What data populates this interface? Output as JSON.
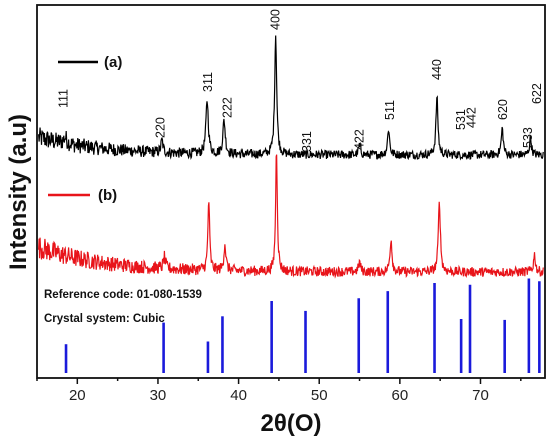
{
  "chart_data": {
    "type": "line",
    "xlabel": "2θ(O)",
    "ylabel": "Intensity (a.u)",
    "xlim": [
      15,
      78
    ],
    "x_ticks": [
      20,
      30,
      40,
      50,
      60,
      70
    ],
    "grid": false,
    "series": [
      {
        "name": "(a)",
        "color": "#000000",
        "baseline": 0.3,
        "noise": 0.035,
        "peaks": [
          {
            "x": 18.5,
            "h": 0.05,
            "w": 0.5
          },
          {
            "x": 30.5,
            "h": 0.1,
            "w": 0.3
          },
          {
            "x": 36.1,
            "h": 0.45,
            "w": 0.35
          },
          {
            "x": 38.2,
            "h": 0.28,
            "w": 0.35
          },
          {
            "x": 44.6,
            "h": 1.0,
            "w": 0.3
          },
          {
            "x": 55.0,
            "h": 0.08,
            "w": 0.3
          },
          {
            "x": 58.6,
            "h": 0.22,
            "w": 0.3
          },
          {
            "x": 64.6,
            "h": 0.48,
            "w": 0.3
          },
          {
            "x": 72.7,
            "h": 0.22,
            "w": 0.3
          },
          {
            "x": 76.2,
            "h": 0.14,
            "w": 0.3
          }
        ]
      },
      {
        "name": "(b)",
        "color": "#e8141a",
        "baseline": 0.3,
        "noise": 0.05,
        "peaks": [
          {
            "x": 30.8,
            "h": 0.12,
            "w": 0.3
          },
          {
            "x": 36.3,
            "h": 0.75,
            "w": 0.25
          },
          {
            "x": 38.3,
            "h": 0.28,
            "w": 0.3
          },
          {
            "x": 44.7,
            "h": 1.3,
            "w": 0.25
          },
          {
            "x": 55.0,
            "h": 0.1,
            "w": 0.3
          },
          {
            "x": 58.9,
            "h": 0.35,
            "w": 0.3
          },
          {
            "x": 64.9,
            "h": 0.75,
            "w": 0.3
          },
          {
            "x": 76.7,
            "h": 0.18,
            "w": 0.3
          }
        ]
      }
    ],
    "peak_labels": [
      {
        "text": "111",
        "x": 18.3,
        "vertical": true
      },
      {
        "text": "220",
        "x": 30.3,
        "vertical": true
      },
      {
        "text": "311",
        "x": 36.2,
        "vertical": true
      },
      {
        "text": "222",
        "x": 38.6,
        "vertical": true
      },
      {
        "text": "400",
        "x": 44.6,
        "vertical": true
      },
      {
        "text": "331",
        "x": 48.5,
        "vertical": true
      },
      {
        "text": "422",
        "x": 55.0,
        "vertical": true
      },
      {
        "text": "511",
        "x": 58.8,
        "vertical": true
      },
      {
        "text": "440",
        "x": 64.6,
        "vertical": true
      },
      {
        "text": "531",
        "x": 67.6,
        "vertical": true
      },
      {
        "text": "442",
        "x": 68.9,
        "vertical": true
      },
      {
        "text": "620",
        "x": 72.8,
        "vertical": true
      },
      {
        "text": "533",
        "x": 75.9,
        "vertical": true
      },
      {
        "text": "622",
        "x": 77.0,
        "vertical": true
      }
    ],
    "reference": {
      "code_label": "Reference code: 01-080-1539",
      "system_label": "Crystal system: Cubic",
      "color": "#1a1adb",
      "lines": [
        {
          "x": 18.6,
          "h": 0.32
        },
        {
          "x": 30.7,
          "h": 0.56
        },
        {
          "x": 36.2,
          "h": 0.35
        },
        {
          "x": 38.0,
          "h": 0.63
        },
        {
          "x": 44.1,
          "h": 0.8
        },
        {
          "x": 48.3,
          "h": 0.69
        },
        {
          "x": 54.9,
          "h": 0.83
        },
        {
          "x": 58.5,
          "h": 0.91
        },
        {
          "x": 64.3,
          "h": 1.0
        },
        {
          "x": 67.6,
          "h": 0.6
        },
        {
          "x": 68.7,
          "h": 0.98
        },
        {
          "x": 73.0,
          "h": 0.59
        },
        {
          "x": 76.0,
          "h": 1.05
        },
        {
          "x": 77.3,
          "h": 1.02
        }
      ]
    },
    "legend": [
      {
        "label": "(a)",
        "color": "#000000"
      },
      {
        "label": "(b)",
        "color": "#e8141a"
      }
    ]
  }
}
